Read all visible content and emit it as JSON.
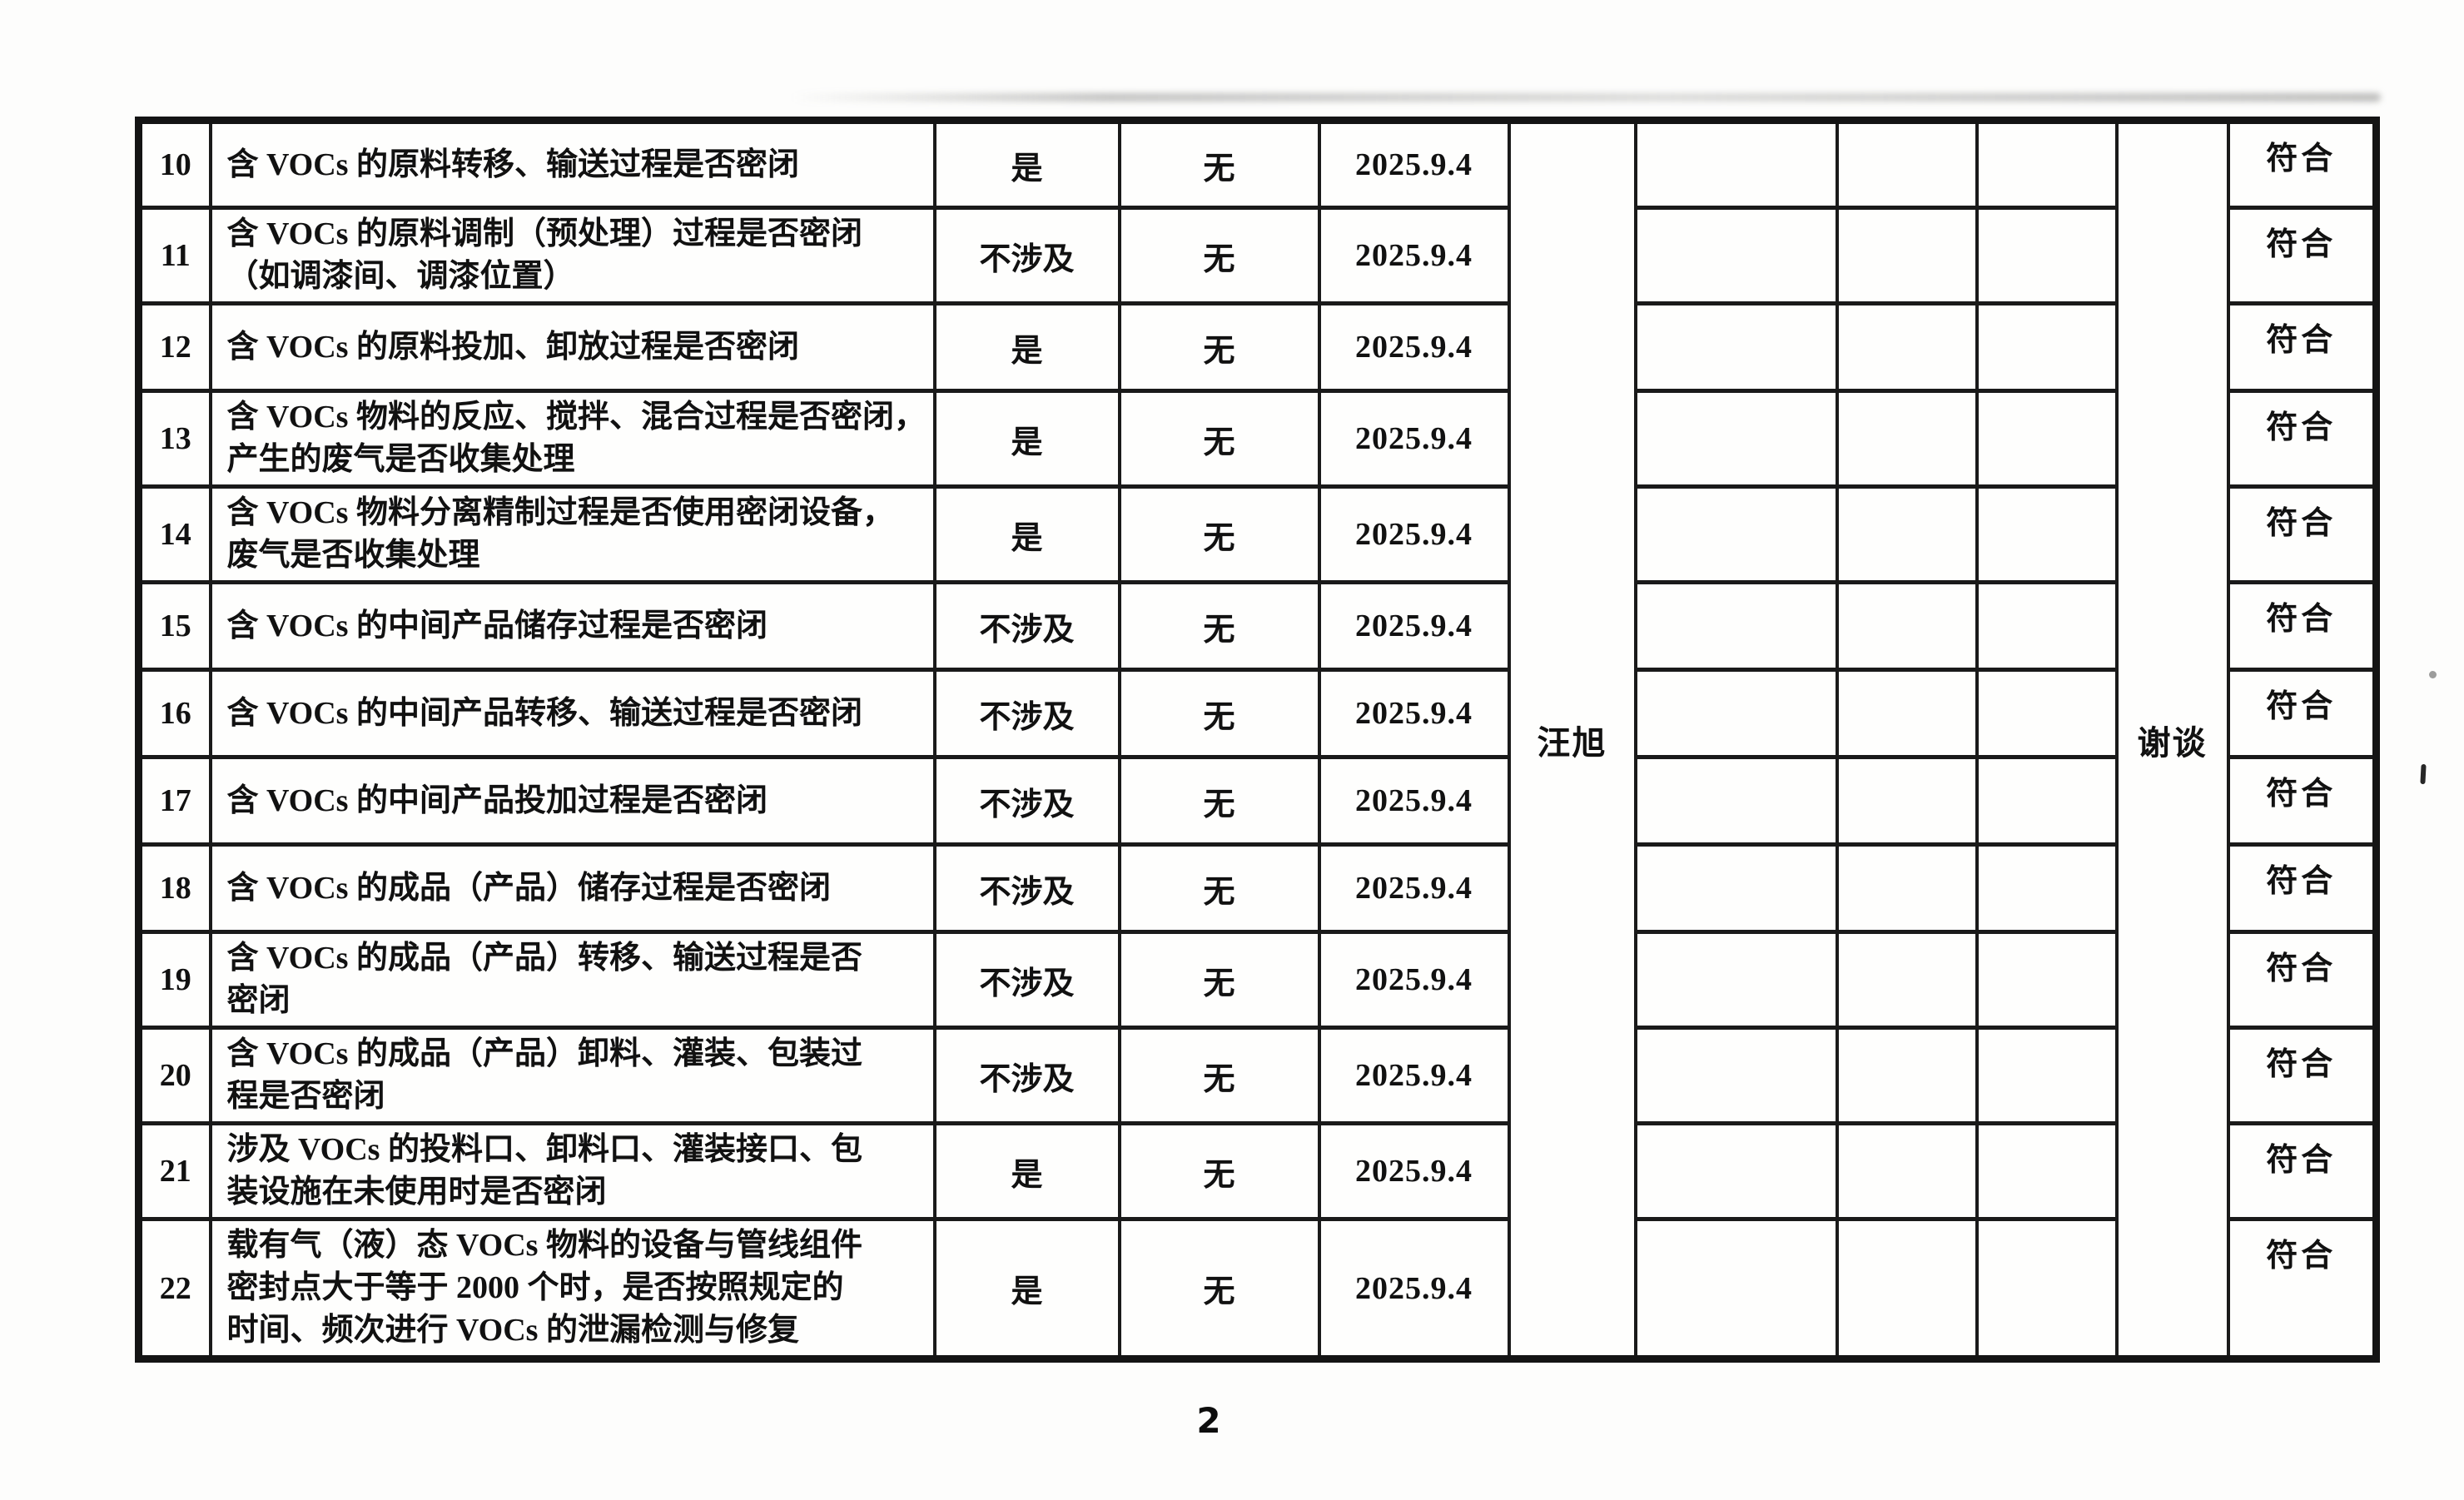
{
  "page": {
    "number": "2"
  },
  "table": {
    "inspector_left": "汪旭",
    "inspector_right": "谢谈",
    "rows": [
      {
        "no": "10",
        "item": "含 VOCs 的原料转移、输送过程是否密闭",
        "answer": "是",
        "problem": "无",
        "date": "2025.9.4",
        "result": "符合"
      },
      {
        "no": "11",
        "item": "含 VOCs 的原料调制（预处理）过程是否密闭\n（如调漆间、调漆位置）",
        "answer": "不涉及",
        "problem": "无",
        "date": "2025.9.4",
        "result": "符合"
      },
      {
        "no": "12",
        "item": "含 VOCs 的原料投加、卸放过程是否密闭",
        "answer": "是",
        "problem": "无",
        "date": "2025.9.4",
        "result": "符合"
      },
      {
        "no": "13",
        "item": "含 VOCs 物料的反应、搅拌、混合过程是否密闭，\n产生的废气是否收集处理",
        "answer": "是",
        "problem": "无",
        "date": "2025.9.4",
        "result": "符合"
      },
      {
        "no": "14",
        "item": "含 VOCs 物料分离精制过程是否使用密闭设备，\n废气是否收集处理",
        "answer": "是",
        "problem": "无",
        "date": "2025.9.4",
        "result": "符合"
      },
      {
        "no": "15",
        "item": "含 VOCs 的中间产品储存过程是否密闭",
        "answer": "不涉及",
        "problem": "无",
        "date": "2025.9.4",
        "result": "符合"
      },
      {
        "no": "16",
        "item": "含 VOCs 的中间产品转移、输送过程是否密闭",
        "answer": "不涉及",
        "problem": "无",
        "date": "2025.9.4",
        "result": "符合"
      },
      {
        "no": "17",
        "item": "含 VOCs 的中间产品投加过程是否密闭",
        "answer": "不涉及",
        "problem": "无",
        "date": "2025.9.4",
        "result": "符合"
      },
      {
        "no": "18",
        "item": "含 VOCs 的成品（产品）储存过程是否密闭",
        "answer": "不涉及",
        "problem": "无",
        "date": "2025.9.4",
        "result": "符合"
      },
      {
        "no": "19",
        "item": "含 VOCs 的成品（产品）转移、输送过程是否\n密闭",
        "answer": "不涉及",
        "problem": "无",
        "date": "2025.9.4",
        "result": "符合"
      },
      {
        "no": "20",
        "item": "含 VOCs 的成品（产品）卸料、灌装、包装过\n程是否密闭",
        "answer": "不涉及",
        "problem": "无",
        "date": "2025.9.4",
        "result": "符合"
      },
      {
        "no": "21",
        "item": "涉及 VOCs 的投料口、卸料口、灌装接口、包\n装设施在未使用时是否密闭",
        "answer": "是",
        "problem": "无",
        "date": "2025.9.4",
        "result": "符合"
      },
      {
        "no": "22",
        "item": "载有气（液）态 VOCs 物料的设备与管线组件\n密封点大于等于 2000 个时，是否按照规定的\n时间、频次进行 VOCs 的泄漏检测与修复",
        "answer": "是",
        "problem": "无",
        "date": "2025.9.4",
        "result": "符合"
      }
    ]
  }
}
